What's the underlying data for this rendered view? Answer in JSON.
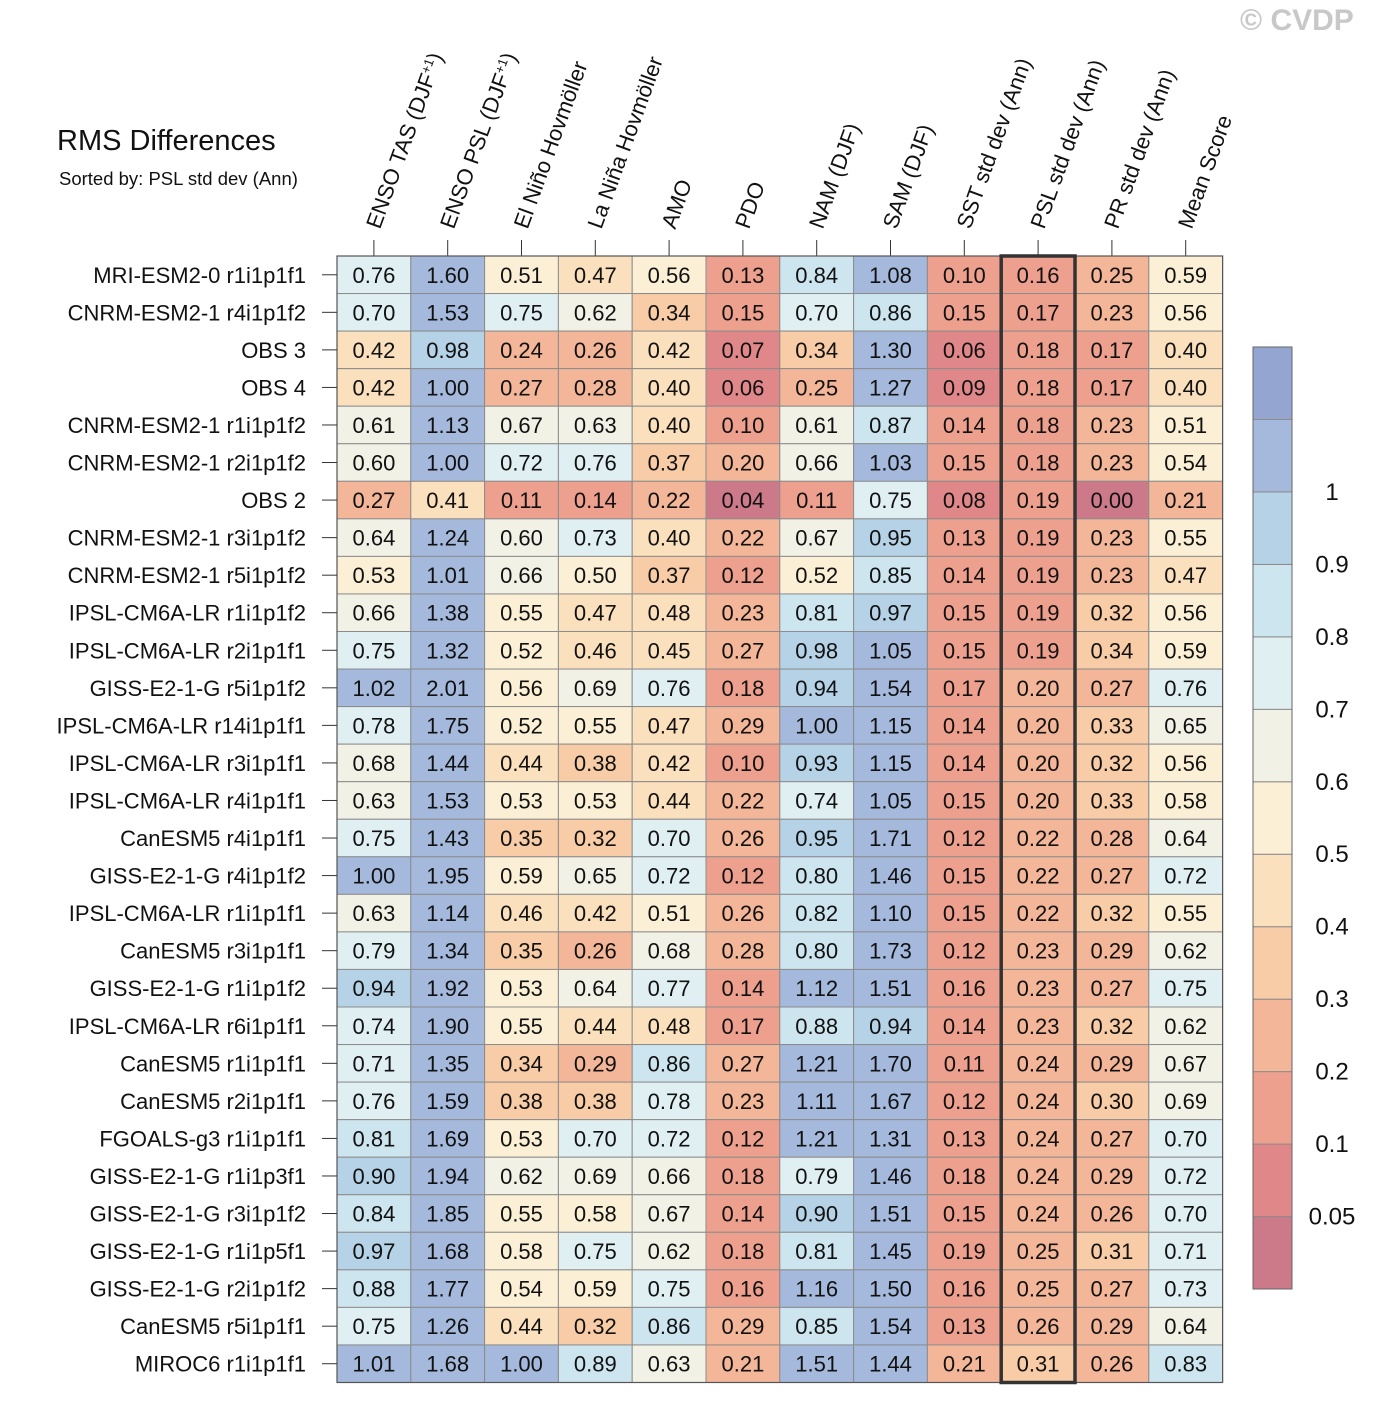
{
  "watermark": "© CVDP",
  "chart_data": {
    "type": "heatmap",
    "title": "RMS Differences",
    "subtitle": "Sorted by: PSL std dev (Ann)",
    "columns": [
      {
        "label": "ENSO TAS (DJF",
        "sup": "+1",
        "close": ")"
      },
      {
        "label": "ENSO PSL (DJF",
        "sup": "+1",
        "close": ")"
      },
      {
        "label": "El Niño Hovmöller",
        "sup": "",
        "close": ""
      },
      {
        "label": "La Niña Hovmöller",
        "sup": "",
        "close": ""
      },
      {
        "label": "AMO",
        "sup": "",
        "close": ""
      },
      {
        "label": "PDO",
        "sup": "",
        "close": ""
      },
      {
        "label": "NAM (DJF)",
        "sup": "",
        "close": ""
      },
      {
        "label": "SAM (DJF)",
        "sup": "",
        "close": ""
      },
      {
        "label": "SST std dev (Ann)",
        "sup": "",
        "close": ""
      },
      {
        "label": "PSL std dev (Ann)",
        "sup": "",
        "close": ""
      },
      {
        "label": "PR std dev (Ann)",
        "sup": "",
        "close": ""
      },
      {
        "label": "Mean Score",
        "sup": "",
        "close": ""
      }
    ],
    "highlighted_column": "PSL std dev (Ann)",
    "rows": [
      {
        "name": "MRI-ESM2-0 r1i1p1f1",
        "values": [
          0.76,
          1.6,
          0.51,
          0.47,
          0.56,
          0.13,
          0.84,
          1.08,
          0.1,
          0.16,
          0.25,
          0.59
        ]
      },
      {
        "name": "CNRM-ESM2-1 r4i1p1f2",
        "values": [
          0.7,
          1.53,
          0.75,
          0.62,
          0.34,
          0.15,
          0.7,
          0.86,
          0.15,
          0.17,
          0.23,
          0.56
        ]
      },
      {
        "name": "OBS 3",
        "values": [
          0.42,
          0.98,
          0.24,
          0.26,
          0.42,
          0.07,
          0.34,
          1.3,
          0.06,
          0.18,
          0.17,
          0.4
        ]
      },
      {
        "name": "OBS 4",
        "values": [
          0.42,
          1.0,
          0.27,
          0.28,
          0.4,
          0.06,
          0.25,
          1.27,
          0.09,
          0.18,
          0.17,
          0.4
        ]
      },
      {
        "name": "CNRM-ESM2-1 r1i1p1f2",
        "values": [
          0.61,
          1.13,
          0.67,
          0.63,
          0.4,
          0.1,
          0.61,
          0.87,
          0.14,
          0.18,
          0.23,
          0.51
        ]
      },
      {
        "name": "CNRM-ESM2-1 r2i1p1f2",
        "values": [
          0.6,
          1.0,
          0.72,
          0.76,
          0.37,
          0.2,
          0.66,
          1.03,
          0.15,
          0.18,
          0.23,
          0.54
        ]
      },
      {
        "name": "OBS 2",
        "values": [
          0.27,
          0.41,
          0.11,
          0.14,
          0.22,
          0.04,
          0.11,
          0.75,
          0.08,
          0.19,
          0.0,
          0.21
        ]
      },
      {
        "name": "CNRM-ESM2-1 r3i1p1f2",
        "values": [
          0.64,
          1.24,
          0.6,
          0.73,
          0.4,
          0.22,
          0.67,
          0.95,
          0.13,
          0.19,
          0.23,
          0.55
        ]
      },
      {
        "name": "CNRM-ESM2-1 r5i1p1f2",
        "values": [
          0.53,
          1.01,
          0.66,
          0.5,
          0.37,
          0.12,
          0.52,
          0.85,
          0.14,
          0.19,
          0.23,
          0.47
        ]
      },
      {
        "name": "IPSL-CM6A-LR r1i1p1f2",
        "values": [
          0.66,
          1.38,
          0.55,
          0.47,
          0.48,
          0.23,
          0.81,
          0.97,
          0.15,
          0.19,
          0.32,
          0.56
        ]
      },
      {
        "name": "IPSL-CM6A-LR r2i1p1f1",
        "values": [
          0.75,
          1.32,
          0.52,
          0.46,
          0.45,
          0.27,
          0.98,
          1.05,
          0.15,
          0.19,
          0.34,
          0.59
        ]
      },
      {
        "name": "GISS-E2-1-G r5i1p1f2",
        "values": [
          1.02,
          2.01,
          0.56,
          0.69,
          0.76,
          0.18,
          0.94,
          1.54,
          0.17,
          0.2,
          0.27,
          0.76
        ]
      },
      {
        "name": "IPSL-CM6A-LR r14i1p1f1",
        "values": [
          0.78,
          1.75,
          0.52,
          0.55,
          0.47,
          0.29,
          1.0,
          1.15,
          0.14,
          0.2,
          0.33,
          0.65
        ]
      },
      {
        "name": "IPSL-CM6A-LR r3i1p1f1",
        "values": [
          0.68,
          1.44,
          0.44,
          0.38,
          0.42,
          0.1,
          0.93,
          1.15,
          0.14,
          0.2,
          0.32,
          0.56
        ]
      },
      {
        "name": "IPSL-CM6A-LR r4i1p1f1",
        "values": [
          0.63,
          1.53,
          0.53,
          0.53,
          0.44,
          0.22,
          0.74,
          1.05,
          0.15,
          0.2,
          0.33,
          0.58
        ]
      },
      {
        "name": "CanESM5 r4i1p1f1",
        "values": [
          0.75,
          1.43,
          0.35,
          0.32,
          0.7,
          0.26,
          0.95,
          1.71,
          0.12,
          0.22,
          0.28,
          0.64
        ]
      },
      {
        "name": "GISS-E2-1-G r4i1p1f2",
        "values": [
          1.0,
          1.95,
          0.59,
          0.65,
          0.72,
          0.12,
          0.8,
          1.46,
          0.15,
          0.22,
          0.27,
          0.72
        ]
      },
      {
        "name": "IPSL-CM6A-LR r1i1p1f1",
        "values": [
          0.63,
          1.14,
          0.46,
          0.42,
          0.51,
          0.26,
          0.82,
          1.1,
          0.15,
          0.22,
          0.32,
          0.55
        ]
      },
      {
        "name": "CanESM5 r3i1p1f1",
        "values": [
          0.79,
          1.34,
          0.35,
          0.26,
          0.68,
          0.28,
          0.8,
          1.73,
          0.12,
          0.23,
          0.29,
          0.62
        ]
      },
      {
        "name": "GISS-E2-1-G r1i1p1f2",
        "values": [
          0.94,
          1.92,
          0.53,
          0.64,
          0.77,
          0.14,
          1.12,
          1.51,
          0.16,
          0.23,
          0.27,
          0.75
        ]
      },
      {
        "name": "IPSL-CM6A-LR r6i1p1f1",
        "values": [
          0.74,
          1.9,
          0.55,
          0.44,
          0.48,
          0.17,
          0.88,
          0.94,
          0.14,
          0.23,
          0.32,
          0.62
        ]
      },
      {
        "name": "CanESM5 r1i1p1f1",
        "values": [
          0.71,
          1.35,
          0.34,
          0.29,
          0.86,
          0.27,
          1.21,
          1.7,
          0.11,
          0.24,
          0.29,
          0.67
        ]
      },
      {
        "name": "CanESM5 r2i1p1f1",
        "values": [
          0.76,
          1.59,
          0.38,
          0.38,
          0.78,
          0.23,
          1.11,
          1.67,
          0.12,
          0.24,
          0.3,
          0.69
        ]
      },
      {
        "name": "FGOALS-g3 r1i1p1f1",
        "values": [
          0.81,
          1.69,
          0.53,
          0.7,
          0.72,
          0.12,
          1.21,
          1.31,
          0.13,
          0.24,
          0.27,
          0.7
        ]
      },
      {
        "name": "GISS-E2-1-G r1i1p3f1",
        "values": [
          0.9,
          1.94,
          0.62,
          0.69,
          0.66,
          0.18,
          0.79,
          1.46,
          0.18,
          0.24,
          0.29,
          0.72
        ]
      },
      {
        "name": "GISS-E2-1-G r3i1p1f2",
        "values": [
          0.84,
          1.85,
          0.55,
          0.58,
          0.67,
          0.14,
          0.9,
          1.51,
          0.15,
          0.24,
          0.26,
          0.7
        ]
      },
      {
        "name": "GISS-E2-1-G r1i1p5f1",
        "values": [
          0.97,
          1.68,
          0.58,
          0.75,
          0.62,
          0.18,
          0.81,
          1.45,
          0.19,
          0.25,
          0.31,
          0.71
        ]
      },
      {
        "name": "GISS-E2-1-G r2i1p1f2",
        "values": [
          0.88,
          1.77,
          0.54,
          0.59,
          0.75,
          0.16,
          1.16,
          1.5,
          0.16,
          0.25,
          0.27,
          0.73
        ]
      },
      {
        "name": "CanESM5 r5i1p1f1",
        "values": [
          0.75,
          1.26,
          0.44,
          0.32,
          0.86,
          0.29,
          0.85,
          1.54,
          0.13,
          0.26,
          0.29,
          0.64
        ]
      },
      {
        "name": "MIROC6 r1i1p1f1",
        "values": [
          1.01,
          1.68,
          1.0,
          0.89,
          0.63,
          0.21,
          1.51,
          1.44,
          0.21,
          0.31,
          0.26,
          0.83
        ]
      }
    ],
    "colorbar": {
      "levels": [
        0.05,
        0.1,
        0.2,
        0.3,
        0.4,
        0.5,
        0.6,
        0.7,
        0.8,
        0.9,
        1
      ],
      "labels": [
        "0.05",
        "0.1",
        "0.2",
        "0.3",
        "0.4",
        "0.5",
        "0.6",
        "0.7",
        "0.8",
        "0.9",
        "1"
      ],
      "colors": [
        "#cc7a8a",
        "#e0878a",
        "#eea08e",
        "#f3b699",
        "#f7cca6",
        "#fbe0bd",
        "#fbf0d5",
        "#f2f1e6",
        "#e0eff2",
        "#cde5ee",
        "#b6d2e6",
        "#a4b9dc",
        "#94a5d2"
      ]
    }
  }
}
